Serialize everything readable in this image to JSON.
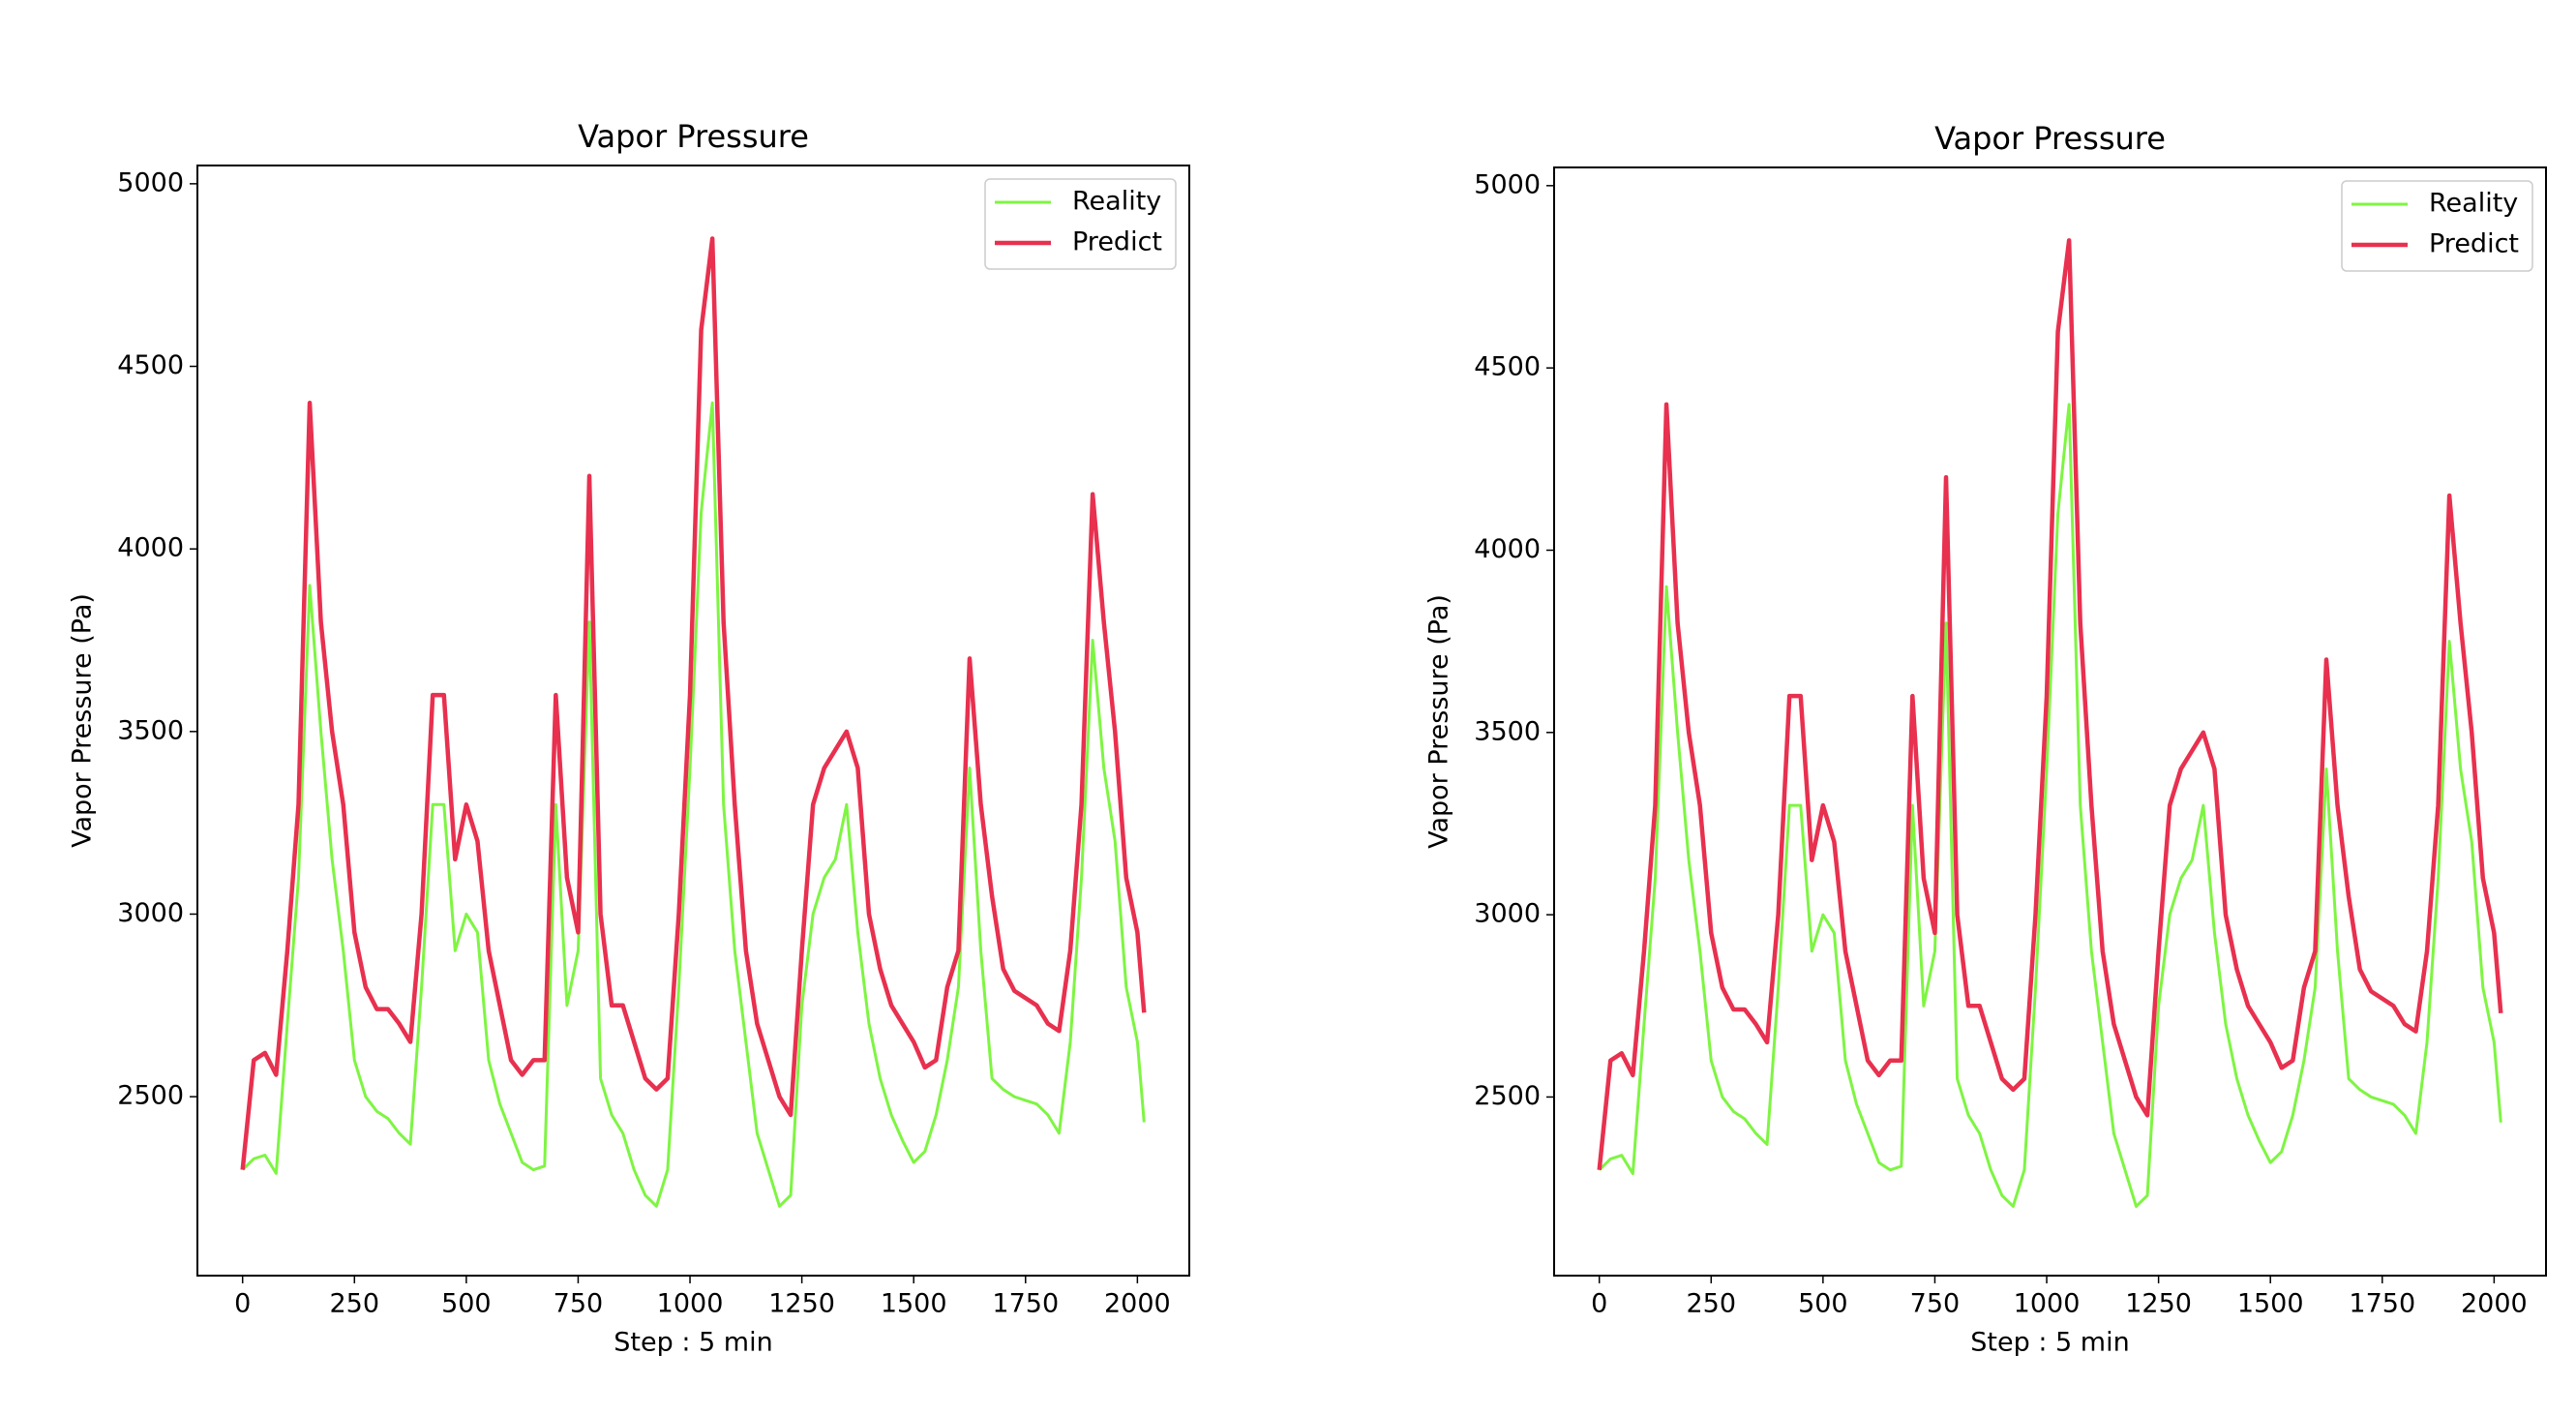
{
  "chart_data": [
    {
      "type": "line",
      "title": "Vapor Pressure",
      "x_label": "Step : 5 min",
      "y_label": "Vapor Pressure (Pa)",
      "x": [
        0,
        25,
        50,
        75,
        100,
        125,
        150,
        175,
        200,
        225,
        250,
        275,
        300,
        325,
        350,
        375,
        400,
        425,
        450,
        475,
        500,
        525,
        550,
        575,
        600,
        625,
        650,
        675,
        700,
        725,
        750,
        775,
        800,
        825,
        850,
        875,
        900,
        925,
        950,
        975,
        1000,
        1025,
        1050,
        1075,
        1100,
        1125,
        1150,
        1175,
        1200,
        1225,
        1250,
        1275,
        1300,
        1325,
        1350,
        1375,
        1400,
        1425,
        1450,
        1475,
        1500,
        1525,
        1550,
        1575,
        1600,
        1625,
        1650,
        1675,
        1700,
        1725,
        1750,
        1775,
        1800,
        1825,
        1850,
        1875,
        1900,
        1925,
        1950,
        1975,
        2000,
        2015
      ],
      "series": [
        {
          "name": "Reality",
          "color": "#7ef542",
          "width": 3,
          "values": [
            2300,
            2330,
            2340,
            2290,
            2700,
            3100,
            3900,
            3500,
            3150,
            2900,
            2600,
            2500,
            2460,
            2440,
            2400,
            2370,
            2800,
            3300,
            3300,
            2900,
            3000,
            2950,
            2600,
            2480,
            2400,
            2320,
            2300,
            2310,
            3300,
            2750,
            2900,
            3800,
            2550,
            2450,
            2400,
            2300,
            2230,
            2200,
            2300,
            2800,
            3400,
            4100,
            4400,
            3300,
            2900,
            2650,
            2400,
            2300,
            2200,
            2230,
            2750,
            3000,
            3100,
            3150,
            3300,
            2950,
            2700,
            2550,
            2450,
            2380,
            2320,
            2350,
            2450,
            2600,
            2800,
            3400,
            2900,
            2550,
            2520,
            2500,
            2490,
            2480,
            2450,
            2400,
            2650,
            3100,
            3750,
            3400,
            3200,
            2800,
            2650,
            2430
          ]
        },
        {
          "name": "Predict",
          "color": "#e8304f",
          "width": 4.5,
          "values": [
            2300,
            2600,
            2620,
            2560,
            2900,
            3300,
            4400,
            3800,
            3500,
            3300,
            2950,
            2800,
            2740,
            2740,
            2700,
            2650,
            3000,
            3600,
            3600,
            3150,
            3300,
            3200,
            2900,
            2750,
            2600,
            2560,
            2600,
            2600,
            3600,
            3100,
            2950,
            4200,
            3000,
            2750,
            2750,
            2650,
            2550,
            2520,
            2550,
            3000,
            3600,
            4600,
            4850,
            3800,
            3300,
            2900,
            2700,
            2600,
            2500,
            2450,
            2900,
            3300,
            3400,
            3450,
            3500,
            3400,
            3000,
            2850,
            2750,
            2700,
            2650,
            2580,
            2600,
            2800,
            2900,
            3700,
            3300,
            3050,
            2850,
            2790,
            2770,
            2750,
            2700,
            2680,
            2900,
            3300,
            4150,
            3800,
            3500,
            3100,
            2950,
            2730
          ]
        }
      ],
      "xlim": [
        -101,
        2116
      ],
      "ylim": [
        2010,
        5050
      ],
      "xticks": [
        0,
        250,
        500,
        750,
        1000,
        1250,
        1500,
        1750,
        2000
      ],
      "yticks": [
        2500,
        3000,
        3500,
        4000,
        4500,
        5000
      ],
      "legend": "upper right"
    },
    {
      "type": "line",
      "title": "Vapor Pressure",
      "x_label": "Step : 5 min",
      "y_label": "Vapor Pressure (Pa)",
      "x": [
        0,
        25,
        50,
        75,
        100,
        125,
        150,
        175,
        200,
        225,
        250,
        275,
        300,
        325,
        350,
        375,
        400,
        425,
        450,
        475,
        500,
        525,
        550,
        575,
        600,
        625,
        650,
        675,
        700,
        725,
        750,
        775,
        800,
        825,
        850,
        875,
        900,
        925,
        950,
        975,
        1000,
        1025,
        1050,
        1075,
        1100,
        1125,
        1150,
        1175,
        1200,
        1225,
        1250,
        1275,
        1300,
        1325,
        1350,
        1375,
        1400,
        1425,
        1450,
        1475,
        1500,
        1525,
        1550,
        1575,
        1600,
        1625,
        1650,
        1675,
        1700,
        1725,
        1750,
        1775,
        1800,
        1825,
        1850,
        1875,
        1900,
        1925,
        1950,
        1975,
        2000,
        2015
      ],
      "series": [
        {
          "name": "Reality",
          "color": "#7ef542",
          "width": 3,
          "values": [
            2300,
            2330,
            2340,
            2290,
            2700,
            3100,
            3900,
            3500,
            3150,
            2900,
            2600,
            2500,
            2460,
            2440,
            2400,
            2370,
            2800,
            3300,
            3300,
            2900,
            3000,
            2950,
            2600,
            2480,
            2400,
            2320,
            2300,
            2310,
            3300,
            2750,
            2900,
            3800,
            2550,
            2450,
            2400,
            2300,
            2230,
            2200,
            2300,
            2800,
            3400,
            4100,
            4400,
            3300,
            2900,
            2650,
            2400,
            2300,
            2200,
            2230,
            2750,
            3000,
            3100,
            3150,
            3300,
            2950,
            2700,
            2550,
            2450,
            2380,
            2320,
            2350,
            2450,
            2600,
            2800,
            3400,
            2900,
            2550,
            2520,
            2500,
            2490,
            2480,
            2450,
            2400,
            2650,
            3100,
            3750,
            3400,
            3200,
            2800,
            2650,
            2430
          ]
        },
        {
          "name": "Predict",
          "color": "#e8304f",
          "width": 4.5,
          "values": [
            2300,
            2600,
            2620,
            2560,
            2900,
            3300,
            4400,
            3800,
            3500,
            3300,
            2950,
            2800,
            2740,
            2740,
            2700,
            2650,
            3000,
            3600,
            3600,
            3150,
            3300,
            3200,
            2900,
            2750,
            2600,
            2560,
            2600,
            2600,
            3600,
            3100,
            2950,
            4200,
            3000,
            2750,
            2750,
            2650,
            2550,
            2520,
            2550,
            3000,
            3600,
            4600,
            4850,
            3800,
            3300,
            2900,
            2700,
            2600,
            2500,
            2450,
            2900,
            3300,
            3400,
            3450,
            3500,
            3400,
            3000,
            2850,
            2750,
            2700,
            2650,
            2580,
            2600,
            2800,
            2900,
            3700,
            3300,
            3050,
            2850,
            2790,
            2770,
            2750,
            2700,
            2680,
            2900,
            3300,
            4150,
            3800,
            3500,
            3100,
            2950,
            2730
          ]
        }
      ],
      "xlim": [
        -101,
        2116
      ],
      "ylim": [
        2010,
        5050
      ],
      "xticks": [
        0,
        250,
        500,
        750,
        1000,
        1250,
        1500,
        1750,
        2000
      ],
      "yticks": [
        2500,
        3000,
        3500,
        4000,
        4500,
        5000
      ],
      "legend": "upper right"
    }
  ]
}
